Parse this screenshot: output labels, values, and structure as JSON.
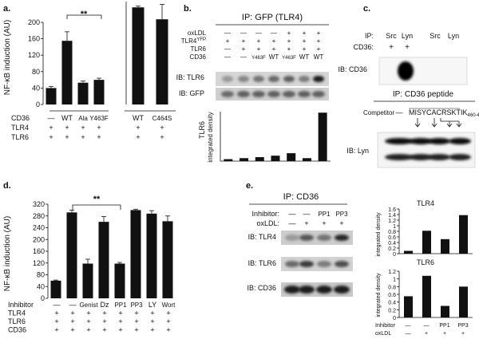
{
  "panel_labels": {
    "a": "a.",
    "b": "b.",
    "c": "c.",
    "d": "d.",
    "e": "e."
  },
  "panel_a": {
    "ylabel": "NF-κB induction (AU)",
    "significance": "**",
    "rows": [
      {
        "label": "CD36",
        "left": [
          "—",
          "WT",
          "Ala",
          "Y463F"
        ],
        "right": [
          "WT",
          "C464S"
        ]
      },
      {
        "label": "TLR4",
        "left": [
          "+",
          "+",
          "+",
          "+"
        ],
        "right": [
          "+",
          "+"
        ]
      },
      {
        "label": "TLR6",
        "left": [
          "+",
          "+",
          "+",
          "+"
        ],
        "right": [
          "+",
          "+"
        ]
      }
    ]
  },
  "panel_b": {
    "title": "IP: GFP (TLR4)",
    "rows": [
      {
        "label": "oxLDL",
        "values": [
          "—",
          "—",
          "—",
          "—",
          "+",
          "+",
          "+"
        ]
      },
      {
        "label": "TLR4",
        "label_sup": "YFP",
        "values": [
          "+",
          "+",
          "+",
          "+",
          "+",
          "+",
          "+"
        ]
      },
      {
        "label": "TLR6",
        "values": [
          "—",
          "+",
          "+",
          "+",
          "+",
          "+",
          "+"
        ]
      },
      {
        "label": "CD36",
        "values": [
          "—",
          "—",
          "Y463F",
          "WT",
          "Y463F",
          "WT",
          "WT"
        ]
      }
    ],
    "blots": [
      "IB: TLR6",
      "IB: GFP"
    ],
    "ylabel_top": "TLR6",
    "ylabel_bottom": "integrated density"
  },
  "panel_c": {
    "ip_label": "IP:",
    "ip_lanes": [
      "Src",
      "Lyn",
      "Src",
      "Lyn"
    ],
    "cd36_label": "CD36:",
    "cd36_values": [
      "+",
      "+",
      "",
      ""
    ],
    "blot1": "IB: CD36",
    "title2": "IP: CD36 peptide",
    "competitor_label": "Competitor",
    "competitor_dash": "—",
    "peptide": "MISYCACRSKTIK",
    "peptide_sub": "460-472",
    "blot2": "IB: Lyn"
  },
  "panel_d": {
    "ylabel": "NF-κB induction (AU)",
    "significance": "**",
    "rows": [
      {
        "label": "Inhibitor",
        "values": [
          "—",
          "—",
          "Genist",
          "Dz",
          "PP1",
          "PP3",
          "LY",
          "Wort"
        ]
      },
      {
        "label": "TLR4",
        "values": [
          "+",
          "+",
          "+",
          "+",
          "+",
          "+",
          "+",
          "+"
        ]
      },
      {
        "label": "TLR6",
        "values": [
          "+",
          "+",
          "+",
          "+",
          "+",
          "+",
          "+",
          "+"
        ]
      },
      {
        "label": "CD36",
        "values": [
          "+",
          "+",
          "+",
          "+",
          "+",
          "+",
          "+",
          "+"
        ]
      }
    ]
  },
  "panel_e": {
    "title": "IP: CD36",
    "rows": [
      {
        "label": "Inhibitor:",
        "values": [
          "—",
          "—",
          "PP1",
          "PP3"
        ]
      },
      {
        "label": "oxLDL:",
        "values": [
          "—",
          "+",
          "+",
          "+"
        ]
      }
    ],
    "blots": [
      "IB: TLR4",
      "IB: TLR6",
      "IB: CD36"
    ],
    "chart_ylabel": "integrated density",
    "bottom_rows": [
      {
        "label": "Inhibitor",
        "values": [
          "—",
          "—",
          "PP1",
          "PP3"
        ]
      },
      {
        "label": "oxLDL",
        "values": [
          "—",
          "+",
          "+",
          "+"
        ]
      }
    ]
  },
  "chart_data": [
    {
      "id": "a_left",
      "type": "bar",
      "title": "",
      "xlabel": "",
      "ylabel": "NF-κB induction (AU)",
      "ylim": [
        0,
        200
      ],
      "yticks": [
        0,
        40,
        80,
        120,
        160,
        200
      ],
      "categories": [
        "—",
        "WT",
        "Ala",
        "Y463F"
      ],
      "values": [
        40,
        155,
        53,
        60
      ],
      "errors": [
        4,
        22,
        4,
        4
      ]
    },
    {
      "id": "a_right",
      "type": "bar",
      "title": "",
      "xlabel": "",
      "ylabel": "",
      "ylim": [
        0,
        250
      ],
      "categories": [
        "WT",
        "C464S"
      ],
      "values": [
        236,
        207
      ],
      "errors": [
        3,
        36
      ]
    },
    {
      "id": "b_density",
      "type": "bar",
      "title": "",
      "xlabel": "",
      "ylabel": "TLR6 integrated density",
      "ylim": [
        0,
        5
      ],
      "categories": [
        "1",
        "2",
        "3",
        "4",
        "5",
        "6",
        "7"
      ],
      "values": [
        0.2,
        0.3,
        0.4,
        0.55,
        0.8,
        0.3,
        4.9
      ]
    },
    {
      "id": "d_main",
      "type": "bar",
      "title": "",
      "xlabel": "",
      "ylabel": "NF-κB induction (AU)",
      "ylim": [
        0,
        320
      ],
      "yticks": [
        0,
        40,
        80,
        120,
        160,
        200,
        240,
        280,
        320
      ],
      "categories": [
        "—",
        "—",
        "Genist",
        "Dz",
        "PP1",
        "PP3",
        "LY",
        "Wort"
      ],
      "values": [
        60,
        292,
        118,
        260,
        118,
        300,
        288,
        262
      ],
      "errors": [
        2,
        8,
        15,
        18,
        4,
        3,
        10,
        18
      ]
    },
    {
      "id": "e_tlr4",
      "type": "bar",
      "title": "TLR4",
      "xlabel": "",
      "ylabel": "integrated density",
      "ylim": [
        0,
        1.6
      ],
      "yticks": [
        0,
        0.2,
        0.4,
        0.6,
        0.8,
        1,
        1.2,
        1.4,
        1.6
      ],
      "categories": [
        "—",
        "—",
        "PP1",
        "PP3"
      ],
      "values": [
        0.1,
        0.82,
        0.52,
        1.38
      ]
    },
    {
      "id": "e_tlr6",
      "type": "bar",
      "title": "TLR6",
      "xlabel": "",
      "ylabel": "integrated density",
      "ylim": [
        0,
        1.2
      ],
      "yticks": [
        0,
        0.2,
        0.4,
        0.6,
        0.8,
        1,
        1.2
      ],
      "categories": [
        "—",
        "—",
        "PP1",
        "PP3"
      ],
      "values": [
        0.55,
        1.08,
        0.3,
        0.8
      ]
    }
  ]
}
